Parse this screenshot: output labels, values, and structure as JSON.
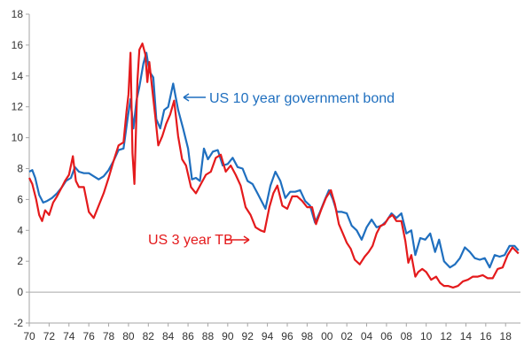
{
  "chart_data": {
    "type": "line",
    "xlim": [
      1970,
      2019.5
    ],
    "ylim": [
      -2,
      18
    ],
    "yticks": [
      -2,
      0,
      2,
      4,
      6,
      8,
      10,
      12,
      14,
      16,
      18
    ],
    "yticklabels": [
      "-2",
      "0",
      "2",
      "4",
      "6",
      "8",
      "10",
      "12",
      "14",
      "16",
      "18"
    ],
    "xticks": [
      1970,
      1972,
      1974,
      1976,
      1978,
      1980,
      1982,
      1984,
      1986,
      1988,
      1990,
      1992,
      1994,
      1996,
      1998,
      2000,
      2002,
      2004,
      2006,
      2008,
      2010,
      2012,
      2014,
      2016,
      2018
    ],
    "xticklabels": [
      "70",
      "72",
      "74",
      "76",
      "78",
      "80",
      "82",
      "84",
      "86",
      "88",
      "90",
      "92",
      "94",
      "96",
      "98",
      "00",
      "02",
      "04",
      "06",
      "08",
      "10",
      "12",
      "14",
      "16",
      "18"
    ],
    "grid": false,
    "series": [
      {
        "name": "US 10 year government bond",
        "color": "#1f6fbf",
        "points": [
          [
            1970,
            7.8
          ],
          [
            1970.3,
            7.9
          ],
          [
            1970.6,
            7.4
          ],
          [
            1971,
            6.3
          ],
          [
            1971.4,
            5.8
          ],
          [
            1971.8,
            5.9
          ],
          [
            1972.3,
            6.1
          ],
          [
            1972.8,
            6.4
          ],
          [
            1973.3,
            6.8
          ],
          [
            1973.7,
            7.2
          ],
          [
            1974.2,
            7.4
          ],
          [
            1974.6,
            8.1
          ],
          [
            1975,
            7.8
          ],
          [
            1975.5,
            7.7
          ],
          [
            1976,
            7.7
          ],
          [
            1976.5,
            7.5
          ],
          [
            1977,
            7.3
          ],
          [
            1977.5,
            7.5
          ],
          [
            1978,
            7.9
          ],
          [
            1978.5,
            8.5
          ],
          [
            1979,
            9.2
          ],
          [
            1979.5,
            9.3
          ],
          [
            1979.9,
            11.2
          ],
          [
            1980.2,
            12.5
          ],
          [
            1980.5,
            10.6
          ],
          [
            1980.8,
            12.4
          ],
          [
            1981.1,
            13.3
          ],
          [
            1981.5,
            14.8
          ],
          [
            1981.8,
            15.5
          ],
          [
            1982.1,
            14.3
          ],
          [
            1982.5,
            13.9
          ],
          [
            1982.8,
            11.2
          ],
          [
            1983.2,
            10.6
          ],
          [
            1983.6,
            11.8
          ],
          [
            1984,
            12.0
          ],
          [
            1984.5,
            13.5
          ],
          [
            1985,
            11.8
          ],
          [
            1985.5,
            10.6
          ],
          [
            1986,
            9.3
          ],
          [
            1986.4,
            7.3
          ],
          [
            1986.8,
            7.4
          ],
          [
            1987.2,
            7.2
          ],
          [
            1987.6,
            9.3
          ],
          [
            1988,
            8.6
          ],
          [
            1988.5,
            9.1
          ],
          [
            1989,
            9.2
          ],
          [
            1989.5,
            8.2
          ],
          [
            1990,
            8.3
          ],
          [
            1990.5,
            8.7
          ],
          [
            1991,
            8.1
          ],
          [
            1991.5,
            8.0
          ],
          [
            1992,
            7.2
          ],
          [
            1992.5,
            7.0
          ],
          [
            1993,
            6.4
          ],
          [
            1993.8,
            5.4
          ],
          [
            1994.3,
            6.9
          ],
          [
            1994.8,
            7.8
          ],
          [
            1995.3,
            7.2
          ],
          [
            1995.8,
            6.1
          ],
          [
            1996.3,
            6.5
          ],
          [
            1996.8,
            6.5
          ],
          [
            1997.3,
            6.6
          ],
          [
            1997.8,
            5.9
          ],
          [
            1998.3,
            5.6
          ],
          [
            1998.8,
            4.5
          ],
          [
            1999.3,
            5.2
          ],
          [
            1999.8,
            6.0
          ],
          [
            2000.2,
            6.6
          ],
          [
            2000.6,
            6.0
          ],
          [
            2001,
            5.2
          ],
          [
            2001.5,
            5.2
          ],
          [
            2002,
            5.1
          ],
          [
            2002.5,
            4.3
          ],
          [
            2003,
            4.0
          ],
          [
            2003.5,
            3.4
          ],
          [
            2004,
            4.2
          ],
          [
            2004.5,
            4.7
          ],
          [
            2005,
            4.2
          ],
          [
            2005.5,
            4.3
          ],
          [
            2006,
            4.6
          ],
          [
            2006.5,
            5.1
          ],
          [
            2007,
            4.8
          ],
          [
            2007.5,
            5.1
          ],
          [
            2008,
            3.8
          ],
          [
            2008.5,
            4.0
          ],
          [
            2008.9,
            2.4
          ],
          [
            2009.4,
            3.5
          ],
          [
            2009.9,
            3.4
          ],
          [
            2010.4,
            3.8
          ],
          [
            2010.9,
            2.6
          ],
          [
            2011.3,
            3.4
          ],
          [
            2011.8,
            2.0
          ],
          [
            2012.4,
            1.6
          ],
          [
            2012.9,
            1.8
          ],
          [
            2013.4,
            2.2
          ],
          [
            2013.9,
            2.9
          ],
          [
            2014.4,
            2.6
          ],
          [
            2014.9,
            2.2
          ],
          [
            2015.4,
            2.1
          ],
          [
            2015.9,
            2.2
          ],
          [
            2016.4,
            1.6
          ],
          [
            2016.9,
            2.4
          ],
          [
            2017.4,
            2.3
          ],
          [
            2017.9,
            2.4
          ],
          [
            2018.4,
            3.0
          ],
          [
            2018.9,
            3.0
          ],
          [
            2019.3,
            2.7
          ]
        ]
      },
      {
        "name": "US 3 year TB",
        "color": "#e41a1c",
        "points": [
          [
            1970,
            7.4
          ],
          [
            1970.3,
            7.0
          ],
          [
            1970.7,
            6.0
          ],
          [
            1971,
            5.0
          ],
          [
            1971.3,
            4.6
          ],
          [
            1971.6,
            5.3
          ],
          [
            1972,
            5.0
          ],
          [
            1972.4,
            5.8
          ],
          [
            1972.8,
            6.2
          ],
          [
            1973.2,
            6.7
          ],
          [
            1973.6,
            7.2
          ],
          [
            1974,
            7.6
          ],
          [
            1974.4,
            8.8
          ],
          [
            1974.7,
            7.2
          ],
          [
            1975,
            6.8
          ],
          [
            1975.5,
            6.8
          ],
          [
            1976,
            5.2
          ],
          [
            1976.5,
            4.8
          ],
          [
            1977,
            5.6
          ],
          [
            1977.5,
            6.4
          ],
          [
            1978,
            7.4
          ],
          [
            1978.5,
            8.5
          ],
          [
            1979,
            9.5
          ],
          [
            1979.5,
            9.7
          ],
          [
            1979.8,
            11.7
          ],
          [
            1980,
            12.8
          ],
          [
            1980.2,
            15.5
          ],
          [
            1980.4,
            9.0
          ],
          [
            1980.6,
            7.0
          ],
          [
            1980.9,
            13.7
          ],
          [
            1981.1,
            15.7
          ],
          [
            1981.4,
            16.1
          ],
          [
            1981.7,
            15.4
          ],
          [
            1981.9,
            13.6
          ],
          [
            1982.1,
            14.9
          ],
          [
            1982.4,
            13.1
          ],
          [
            1982.7,
            11.4
          ],
          [
            1983,
            9.5
          ],
          [
            1983.4,
            10.1
          ],
          [
            1983.8,
            10.9
          ],
          [
            1984.2,
            11.5
          ],
          [
            1984.6,
            12.4
          ],
          [
            1985,
            10.1
          ],
          [
            1985.4,
            8.6
          ],
          [
            1985.8,
            8.2
          ],
          [
            1986.3,
            6.8
          ],
          [
            1986.8,
            6.4
          ],
          [
            1987.3,
            7.0
          ],
          [
            1987.8,
            7.6
          ],
          [
            1988.3,
            7.8
          ],
          [
            1988.8,
            8.7
          ],
          [
            1989.3,
            8.9
          ],
          [
            1989.8,
            7.8
          ],
          [
            1990.3,
            8.2
          ],
          [
            1990.8,
            7.6
          ],
          [
            1991.3,
            6.9
          ],
          [
            1991.8,
            5.5
          ],
          [
            1992.3,
            5.0
          ],
          [
            1992.8,
            4.2
          ],
          [
            1993.3,
            4.0
          ],
          [
            1993.7,
            3.9
          ],
          [
            1994.2,
            5.5
          ],
          [
            1994.6,
            6.4
          ],
          [
            1995,
            6.9
          ],
          [
            1995.5,
            5.6
          ],
          [
            1996,
            5.4
          ],
          [
            1996.5,
            6.2
          ],
          [
            1997,
            6.2
          ],
          [
            1997.5,
            5.9
          ],
          [
            1998,
            5.5
          ],
          [
            1998.5,
            5.5
          ],
          [
            1998.9,
            4.4
          ],
          [
            1999.4,
            5.3
          ],
          [
            1999.9,
            6.1
          ],
          [
            2000.4,
            6.6
          ],
          [
            2000.8,
            5.7
          ],
          [
            2001.2,
            4.4
          ],
          [
            2001.6,
            3.8
          ],
          [
            2002,
            3.2
          ],
          [
            2002.4,
            2.8
          ],
          [
            2002.8,
            2.1
          ],
          [
            2003.3,
            1.8
          ],
          [
            2003.8,
            2.3
          ],
          [
            2004.2,
            2.6
          ],
          [
            2004.6,
            3.0
          ],
          [
            2005,
            3.8
          ],
          [
            2005.4,
            4.3
          ],
          [
            2005.8,
            4.4
          ],
          [
            2006.2,
            4.8
          ],
          [
            2006.6,
            5.0
          ],
          [
            2007,
            4.6
          ],
          [
            2007.5,
            4.6
          ],
          [
            2007.9,
            3.3
          ],
          [
            2008.2,
            1.9
          ],
          [
            2008.5,
            2.4
          ],
          [
            2008.9,
            1.0
          ],
          [
            2009.2,
            1.3
          ],
          [
            2009.6,
            1.5
          ],
          [
            2010,
            1.3
          ],
          [
            2010.5,
            0.8
          ],
          [
            2011,
            1.0
          ],
          [
            2011.4,
            0.6
          ],
          [
            2011.8,
            0.4
          ],
          [
            2012.2,
            0.4
          ],
          [
            2012.7,
            0.3
          ],
          [
            2013.2,
            0.4
          ],
          [
            2013.7,
            0.7
          ],
          [
            2014.2,
            0.8
          ],
          [
            2014.7,
            1.0
          ],
          [
            2015.2,
            1.0
          ],
          [
            2015.7,
            1.1
          ],
          [
            2016.2,
            0.9
          ],
          [
            2016.7,
            0.9
          ],
          [
            2017.2,
            1.5
          ],
          [
            2017.7,
            1.6
          ],
          [
            2018.2,
            2.4
          ],
          [
            2018.7,
            2.9
          ],
          [
            2019.3,
            2.5
          ]
        ]
      }
    ],
    "annotations": [
      {
        "text": "US 10 year government bond",
        "color": "#1f6fbf"
      },
      {
        "text": "US 3 year TB",
        "color": "#e41a1c"
      }
    ]
  }
}
